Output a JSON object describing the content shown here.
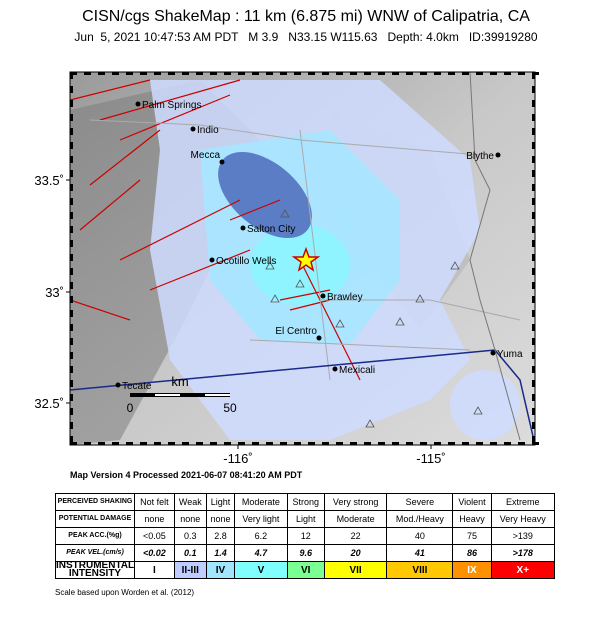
{
  "header": {
    "title": "CISN/cgs ShakeMap : 11 km (6.875 mi) WNW of Calipatria, CA",
    "subtitle": "Jun  5, 2021 10:47:53 AM PDT   M 3.9   N33.15 W115.63   Depth: 4.0km   ID:39919280"
  },
  "map": {
    "cities": [
      {
        "label": "Palm Springs"
      },
      {
        "label": "Indio"
      },
      {
        "label": "Mecca"
      },
      {
        "label": "Salton City"
      },
      {
        "label": "Ocotillo Wells"
      },
      {
        "label": "Brawley"
      },
      {
        "label": "El Centro"
      },
      {
        "label": "Mexicali"
      },
      {
        "label": "Blythe"
      },
      {
        "label": "Yuma"
      },
      {
        "label": "Tecate"
      }
    ],
    "lat_labels": [
      "33.5˚",
      "33˚",
      "32.5˚"
    ],
    "lon_labels": [
      "-116˚",
      "-115˚"
    ],
    "scale": {
      "unit": "km",
      "labels": [
        "0",
        "50"
      ]
    }
  },
  "version": "Map Version 4 Processed 2021-06-07 08:41:20 AM PDT",
  "legend_table": {
    "rows": [
      [
        "PERCEIVED SHAKING",
        "Not felt",
        "Weak",
        "Light",
        "Moderate",
        "Strong",
        "Very strong",
        "Severe",
        "Violent",
        "Extreme"
      ],
      [
        "POTENTIAL DAMAGE",
        "none",
        "none",
        "none",
        "Very light",
        "Light",
        "Moderate",
        "Mod./Heavy",
        "Heavy",
        "Very Heavy"
      ],
      [
        "PEAK ACC.(%g)",
        "<0.05",
        "0.3",
        "2.8",
        "6.2",
        "12",
        "22",
        "40",
        "75",
        ">139"
      ],
      [
        "PEAK VEL.(cm/s)",
        "<0.02",
        "0.1",
        "1.4",
        "4.7",
        "9.6",
        "20",
        "41",
        "86",
        ">178"
      ],
      [
        "INSTRUMENTAL INTENSITY",
        "I",
        "II-III",
        "IV",
        "V",
        "VI",
        "VII",
        "VIII",
        "IX",
        "X+"
      ]
    ]
  },
  "footnote": "Scale based upon Worden et al. (2012)"
}
